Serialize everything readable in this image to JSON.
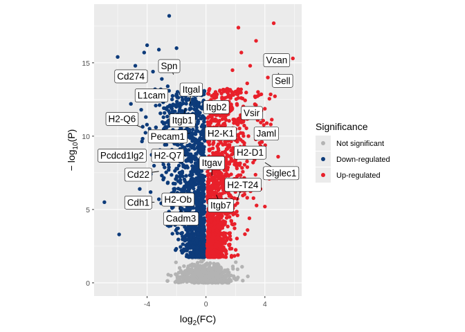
{
  "chart_data": {
    "type": "scatter",
    "title": "",
    "xlabel": {
      "base": "log",
      "sub": "2",
      "tail": "(FC)"
    },
    "ylabel": {
      "prefix": "− log",
      "sub": "10",
      "tail": "(P)"
    },
    "xlim": [
      -7.6,
      6.5
    ],
    "ylim": [
      -0.9,
      19.0
    ],
    "x_ticks": [
      -4,
      0,
      4
    ],
    "x_tick_labels": [
      "-4",
      "0",
      "4"
    ],
    "y_ticks": [
      0,
      5,
      10,
      15
    ],
    "y_tick_labels": [
      "0",
      "5",
      "10",
      "15"
    ],
    "grid": true,
    "legend": {
      "title": "Significance",
      "placement": "right",
      "entries": [
        {
          "label": "Not significant",
          "color": "#b3b3b3"
        },
        {
          "label": "Down-regulated",
          "color": "#0d3b7a"
        },
        {
          "label": "Up-regulated",
          "color": "#e8202a"
        }
      ]
    },
    "series": [
      {
        "name": "Not significant",
        "color": "#b3b3b3"
      },
      {
        "name": "Down-regulated",
        "color": "#0d3b7a",
        "points": [
          [
            -2.5,
            18.2
          ],
          [
            -4.0,
            16.2
          ],
          [
            -4.2,
            15.7
          ],
          [
            -3.2,
            15.9
          ],
          [
            -2.0,
            16.0
          ],
          [
            -6.0,
            15.4
          ],
          [
            -4.8,
            14.8
          ],
          [
            -3.6,
            14.4
          ],
          [
            -3.0,
            13.9
          ],
          [
            -2.6,
            13.4
          ],
          [
            -1.5,
            13.2
          ],
          [
            -3.9,
            12.8
          ],
          [
            -2.8,
            12.5
          ],
          [
            -5.1,
            12.2
          ],
          [
            -4.4,
            11.8
          ],
          [
            -2.3,
            11.6
          ],
          [
            -1.8,
            11.2
          ],
          [
            -3.4,
            10.6
          ],
          [
            -6.9,
            5.5
          ],
          [
            -5.9,
            3.3
          ],
          [
            -4.9,
            5.2
          ],
          [
            -4.5,
            6.4
          ],
          [
            -3.9,
            7.6
          ],
          [
            -2.4,
            8.6
          ],
          [
            -1.9,
            9.4
          ],
          [
            -1.4,
            10.4
          ],
          [
            -1.1,
            11.0
          ],
          [
            -0.9,
            9.8
          ],
          [
            -2.6,
            6.8
          ],
          [
            -3.2,
            5.7
          ],
          [
            -1.7,
            7.4
          ],
          [
            -1.2,
            8.8
          ],
          [
            -0.8,
            7.6
          ]
        ]
      },
      {
        "name": "Up-regulated",
        "color": "#e8202a",
        "points": [
          [
            2.2,
            17.4
          ],
          [
            4.6,
            17.7
          ],
          [
            3.4,
            16.5
          ],
          [
            2.4,
            15.7
          ],
          [
            4.8,
            15.2
          ],
          [
            3.0,
            14.8
          ],
          [
            1.8,
            14.5
          ],
          [
            4.2,
            14.0
          ],
          [
            2.8,
            13.6
          ],
          [
            1.5,
            13.2
          ],
          [
            3.6,
            12.8
          ],
          [
            5.9,
            15.3
          ],
          [
            5.5,
            14.1
          ],
          [
            2.1,
            12.2
          ],
          [
            3.1,
            11.6
          ],
          [
            1.3,
            11.2
          ],
          [
            4.4,
            10.8
          ],
          [
            2.5,
            10.2
          ],
          [
            3.8,
            9.6
          ],
          [
            1.6,
            9.4
          ],
          [
            4.9,
            8.6
          ],
          [
            3.2,
            8.2
          ],
          [
            2.1,
            7.8
          ],
          [
            4.3,
            7.1
          ],
          [
            1.5,
            7.0
          ],
          [
            3.7,
            6.4
          ],
          [
            2.8,
            5.8
          ],
          [
            1.2,
            5.2
          ],
          [
            4.0,
            5.2
          ],
          [
            2.0,
            6.2
          ]
        ]
      }
    ],
    "annotations": [
      {
        "text": "Vcan",
        "x": 4.8,
        "y": 15.2,
        "px": 4.4,
        "py": 15.4
      },
      {
        "text": "Sell",
        "x": 5.2,
        "y": 13.8,
        "px": 4.9,
        "py": 14.3
      },
      {
        "text": "Spn",
        "x": -2.5,
        "y": 14.8,
        "px": -2.2,
        "py": 14.2
      },
      {
        "text": "Cd274",
        "x": -5.1,
        "y": 14.1,
        "px": -4.2,
        "py": 14.1
      },
      {
        "text": "Itgal",
        "x": -1.0,
        "y": 13.2,
        "px": -1.1,
        "py": 12.2
      },
      {
        "text": "L1cam",
        "x": -3.7,
        "y": 12.8,
        "px": -2.9,
        "py": 12.8
      },
      {
        "text": "Itgb2",
        "x": 0.7,
        "y": 12.0,
        "px": 0.0,
        "py": 11.7
      },
      {
        "text": "Vsir",
        "x": 3.1,
        "y": 11.6,
        "px": 2.4,
        "py": 11.3
      },
      {
        "text": "H2-Q6",
        "x": -5.7,
        "y": 11.2,
        "px": -4.4,
        "py": 10.6
      },
      {
        "text": "Itgb1",
        "x": -1.6,
        "y": 11.1,
        "px": -1.4,
        "py": 11.9
      },
      {
        "text": "H2-K1",
        "x": 1.0,
        "y": 10.2,
        "px": 0.3,
        "py": 10.2
      },
      {
        "text": "Jaml",
        "x": 4.1,
        "y": 10.2,
        "px": 3.5,
        "py": 10.2
      },
      {
        "text": "Pecam1",
        "x": -2.6,
        "y": 10.0,
        "px": -1.1,
        "py": 10.2
      },
      {
        "text": "Pcdcd1lg2",
        "x": -5.7,
        "y": 8.7,
        "px": -4.3,
        "py": 8.8
      },
      {
        "text": "H2-Q7",
        "x": -2.6,
        "y": 8.7,
        "px": -1.4,
        "py": 8.7
      },
      {
        "text": "H2-D1",
        "x": 3.0,
        "y": 8.9,
        "px": 2.0,
        "py": 8.8
      },
      {
        "text": "Itgav",
        "x": 0.4,
        "y": 8.2,
        "px": 0.4,
        "py": 7.3
      },
      {
        "text": "Siglec1",
        "x": 5.1,
        "y": 7.5,
        "px": 4.0,
        "py": 8.2
      },
      {
        "text": "Cd22",
        "x": -4.6,
        "y": 7.4,
        "px": -3.2,
        "py": 7.6
      },
      {
        "text": "H2-T24",
        "x": 2.5,
        "y": 6.7,
        "px": 2.1,
        "py": 5.6
      },
      {
        "text": "Cdh1",
        "x": -4.6,
        "y": 5.5,
        "px": -3.5,
        "py": 5.5
      },
      {
        "text": "H2-Ob",
        "x": -1.9,
        "y": 5.7,
        "px": -1.8,
        "py": 5.0
      },
      {
        "text": "Itgb7",
        "x": 1.0,
        "y": 5.3,
        "px": 0.7,
        "py": 6.0
      },
      {
        "text": "Cadm3",
        "x": -1.7,
        "y": 4.4,
        "px": -1.7,
        "py": 5.0
      }
    ]
  }
}
